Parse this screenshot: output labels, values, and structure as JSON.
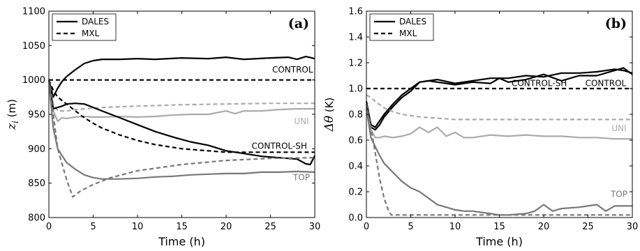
{
  "chart_data": [
    {
      "type": "line",
      "panel_label": "(a)",
      "xlabel": "Time (h)",
      "ylabel_symbol": "z",
      "ylabel_sub": "i",
      "ylabel_unit": " (m)",
      "xlim": [
        0,
        30
      ],
      "ylim": [
        800,
        1100
      ],
      "xticks": [
        0,
        5,
        10,
        15,
        20,
        25,
        30
      ],
      "yticks": [
        800,
        850,
        900,
        950,
        1000,
        1050,
        1100
      ],
      "legend": {
        "position": "top-left",
        "entries": [
          {
            "label": "DALES",
            "style": "solid"
          },
          {
            "label": "MXL",
            "style": "dashed"
          }
        ]
      },
      "annotations": [
        {
          "text": "CONTROL",
          "x": 27.5,
          "y": 1011,
          "color": "#000000"
        },
        {
          "text": "UNI",
          "x": 28.5,
          "y": 936,
          "color": "#aaaaaa"
        },
        {
          "text": "CONTROL-SH",
          "x": 26.0,
          "y": 900,
          "color": "#000000"
        },
        {
          "text": "TOP",
          "x": 28.5,
          "y": 854,
          "color": "#777777"
        }
      ],
      "series": [
        {
          "case": "CONTROL",
          "model": "DALES",
          "color": "#000000",
          "style": "solid",
          "x": [
            0,
            0.5,
            1,
            1.5,
            2,
            3,
            4,
            5,
            6,
            8,
            10,
            12,
            15,
            18,
            20,
            22,
            25,
            27,
            28,
            29,
            30
          ],
          "y": [
            1000,
            975,
            988,
            998,
            1005,
            1015,
            1024,
            1028,
            1030,
            1030,
            1031,
            1030,
            1032,
            1031,
            1033,
            1030,
            1032,
            1033,
            1030,
            1034,
            1031
          ]
        },
        {
          "case": "CONTROL",
          "model": "MXL",
          "color": "#000000",
          "style": "dashed",
          "x": [
            0,
            30
          ],
          "y": [
            1000,
            1000
          ]
        },
        {
          "case": "UNI",
          "model": "DALES",
          "color": "#aaaaaa",
          "style": "solid",
          "x": [
            0,
            0.5,
            1,
            1.5,
            2,
            3,
            4,
            5,
            6,
            8,
            10,
            12,
            14,
            16,
            18,
            20,
            21,
            22,
            24,
            26,
            28,
            30
          ],
          "y": [
            1000,
            955,
            940,
            945,
            944,
            946,
            947,
            946,
            946,
            947,
            946,
            947,
            949,
            950,
            950,
            955,
            951,
            955,
            955,
            957,
            958,
            958
          ]
        },
        {
          "case": "UNI",
          "model": "MXL",
          "color": "#aaaaaa",
          "style": "dashed",
          "x": [
            0,
            0.5,
            1,
            2,
            3,
            4,
            6,
            10,
            15,
            20,
            25,
            30
          ],
          "y": [
            1000,
            965,
            955,
            955,
            957,
            958,
            960,
            962,
            964,
            965,
            966,
            966
          ]
        },
        {
          "case": "CONTROL-SH",
          "model": "DALES",
          "color": "#000000",
          "style": "solid",
          "x": [
            0,
            0.5,
            1,
            1.5,
            2,
            3,
            4,
            5,
            6,
            7,
            8,
            10,
            12,
            14,
            16,
            18,
            20,
            22,
            24,
            26,
            28,
            29,
            29.5,
            30
          ],
          "y": [
            1000,
            958,
            960,
            962,
            965,
            966,
            965,
            960,
            955,
            950,
            945,
            935,
            925,
            917,
            910,
            905,
            897,
            893,
            889,
            887,
            885,
            878,
            877,
            890
          ]
        },
        {
          "case": "CONTROL-SH",
          "model": "MXL",
          "color": "#000000",
          "style": "dashed",
          "x": [
            0,
            0.5,
            1,
            2,
            3,
            4,
            5,
            6,
            8,
            10,
            12,
            15,
            18,
            20,
            22,
            25,
            30
          ],
          "y": [
            1000,
            985,
            975,
            965,
            955,
            945,
            937,
            930,
            920,
            912,
            906,
            900,
            897,
            895,
            895,
            895,
            895
          ]
        },
        {
          "case": "TOP",
          "model": "DALES",
          "color": "#777777",
          "style": "solid",
          "x": [
            0,
            0.5,
            1,
            1.5,
            2,
            3,
            4,
            5,
            6,
            8,
            10,
            12,
            14,
            16,
            18,
            20,
            22,
            24,
            26,
            28,
            30
          ],
          "y": [
            1000,
            930,
            900,
            890,
            880,
            870,
            862,
            858,
            856,
            856,
            857,
            859,
            860,
            862,
            863,
            864,
            864,
            866,
            866,
            867,
            866
          ]
        },
        {
          "case": "TOP",
          "model": "MXL",
          "color": "#777777",
          "style": "dashed",
          "x": [
            0,
            1,
            2,
            2.7,
            3.5,
            5,
            7,
            10,
            15,
            20,
            25,
            30
          ],
          "y": [
            1000,
            900,
            855,
            830,
            838,
            848,
            858,
            868,
            877,
            883,
            886,
            887
          ]
        }
      ]
    },
    {
      "type": "line",
      "panel_label": "(b)",
      "xlabel": "Time (h)",
      "ylabel_symbol": "Δθ",
      "ylabel_unit": " (K)",
      "xlim": [
        0,
        30
      ],
      "ylim": [
        0,
        1.6
      ],
      "xticks": [
        0,
        5,
        10,
        15,
        20,
        25,
        30
      ],
      "yticks": [
        0.0,
        0.2,
        0.4,
        0.6,
        0.8,
        1.0,
        1.2,
        1.4,
        1.6
      ],
      "ytick_labels": [
        "0.0",
        "0.2",
        "0.4",
        "0.6",
        "0.8",
        "1.0",
        "1.2",
        "1.4",
        "1.6"
      ],
      "legend": {
        "position": "top-left",
        "entries": [
          {
            "label": "DALES",
            "style": "solid"
          },
          {
            "label": "MXL",
            "style": "dashed"
          }
        ]
      },
      "annotations": [
        {
          "text": "CONTROL-SH",
          "x": 19.5,
          "y": 1.02,
          "color": "#000000"
        },
        {
          "text": "CONTROL",
          "x": 27.0,
          "y": 1.02,
          "color": "#000000"
        },
        {
          "text": "UNI",
          "x": 28.5,
          "y": 0.67,
          "color": "#aaaaaa"
        },
        {
          "text": "TOP",
          "x": 28.5,
          "y": 0.16,
          "color": "#777777"
        }
      ],
      "series": [
        {
          "case": "CONTROL",
          "model": "DALES",
          "color": "#000000",
          "style": "solid",
          "x": [
            0,
            0.5,
            1,
            1.5,
            2,
            3,
            4,
            5,
            6,
            8,
            10,
            12,
            14,
            16,
            18,
            20,
            22,
            24,
            26,
            28,
            29,
            30
          ],
          "y": [
            0.88,
            0.7,
            0.68,
            0.72,
            0.78,
            0.86,
            0.93,
            0.98,
            1.05,
            1.07,
            1.04,
            1.06,
            1.08,
            1.08,
            1.1,
            1.09,
            1.12,
            1.12,
            1.13,
            1.15,
            1.14,
            1.12
          ]
        },
        {
          "case": "CONTROL",
          "model": "MXL",
          "color": "#000000",
          "style": "dashed",
          "x": [
            0,
            30
          ],
          "y": [
            1.0,
            1.0
          ]
        },
        {
          "case": "CONTROL-SH",
          "model": "DALES",
          "color": "#000000",
          "style": "solid",
          "x": [
            0,
            0.5,
            1,
            1.5,
            2,
            3,
            4,
            5,
            6,
            7,
            8,
            10,
            12,
            14,
            15,
            16,
            18,
            20,
            22,
            24,
            26,
            28,
            29,
            30
          ],
          "y": [
            0.9,
            0.72,
            0.7,
            0.75,
            0.8,
            0.88,
            0.95,
            1.0,
            1.05,
            1.06,
            1.05,
            1.03,
            1.05,
            1.04,
            1.08,
            1.05,
            1.07,
            1.11,
            1.06,
            1.1,
            1.1,
            1.14,
            1.16,
            1.11
          ]
        },
        {
          "case": "UNI",
          "model": "DALES",
          "color": "#aaaaaa",
          "style": "solid",
          "x": [
            0,
            0.5,
            1,
            1.5,
            2,
            3,
            4,
            5,
            6,
            7,
            8,
            9,
            10,
            11,
            12,
            14,
            16,
            18,
            20,
            22,
            24,
            26,
            28,
            30
          ],
          "y": [
            0.85,
            0.68,
            0.62,
            0.62,
            0.63,
            0.62,
            0.63,
            0.65,
            0.7,
            0.66,
            0.7,
            0.63,
            0.66,
            0.62,
            0.62,
            0.64,
            0.63,
            0.64,
            0.63,
            0.63,
            0.62,
            0.62,
            0.61,
            0.61
          ]
        },
        {
          "case": "UNI",
          "model": "MXL",
          "color": "#aaaaaa",
          "style": "dashed",
          "x": [
            0,
            0.5,
            1,
            2,
            3,
            4,
            6,
            8,
            10,
            15,
            20,
            25,
            30
          ],
          "y": [
            0.95,
            0.93,
            0.9,
            0.85,
            0.82,
            0.8,
            0.78,
            0.77,
            0.76,
            0.76,
            0.76,
            0.76,
            0.76
          ]
        },
        {
          "case": "TOP",
          "model": "DALES",
          "color": "#777777",
          "style": "solid",
          "x": [
            0,
            0.5,
            1,
            1.5,
            2,
            3,
            4,
            5,
            6,
            7,
            8,
            9,
            10,
            11,
            12,
            13,
            14,
            15,
            16,
            18,
            19,
            20,
            21,
            22,
            24,
            26,
            27,
            28,
            30
          ],
          "y": [
            0.85,
            0.62,
            0.55,
            0.48,
            0.42,
            0.35,
            0.28,
            0.23,
            0.2,
            0.15,
            0.1,
            0.08,
            0.06,
            0.05,
            0.05,
            0.04,
            0.03,
            0.02,
            0.02,
            0.03,
            0.05,
            0.1,
            0.05,
            0.07,
            0.08,
            0.1,
            0.05,
            0.09,
            0.09
          ]
        },
        {
          "case": "TOP",
          "model": "MXL",
          "color": "#777777",
          "style": "dashed",
          "x": [
            0,
            0.5,
            1,
            1.5,
            2,
            2.5,
            2.8,
            3,
            30
          ],
          "y": [
            0.88,
            0.7,
            0.5,
            0.3,
            0.15,
            0.05,
            0.02,
            0.02,
            0.02
          ]
        }
      ]
    }
  ]
}
